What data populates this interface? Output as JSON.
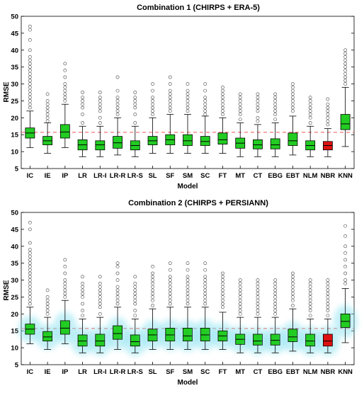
{
  "chart_data": [
    {
      "type": "box",
      "title": "Combination 1 (CHIRPS + ERA-5)",
      "xlabel": "Model",
      "ylabel": "RMSE",
      "ylim": [
        5,
        50
      ],
      "yticks": [
        5,
        10,
        15,
        20,
        25,
        30,
        35,
        40,
        45,
        50
      ],
      "reference_line": 15.7,
      "categories": [
        "IC",
        "IE",
        "IP",
        "LR",
        "LR-I",
        "LR-R",
        "LR-S",
        "SL",
        "SF",
        "SM",
        "SC",
        "FT",
        "MT",
        "CT",
        "EBG",
        "EBT",
        "NLM",
        "NBR",
        "KNN"
      ],
      "box_color": "#22cc22",
      "highlight_color": "#dd1111",
      "highlight_category": "NBR",
      "boxes": [
        {
          "q1": 14.0,
          "median": 15.5,
          "q3": 17.0,
          "wlo": 11.2,
          "whi": 22.0,
          "outliers": [
            23,
            24,
            25,
            26,
            27,
            28,
            29,
            30,
            31,
            32,
            33,
            34,
            35,
            36,
            37,
            38,
            40,
            43,
            46,
            47
          ]
        },
        {
          "q1": 12.0,
          "median": 13.2,
          "q3": 14.5,
          "wlo": 9.5,
          "whi": 18.5,
          "outliers": [
            19,
            20,
            21,
            22,
            23,
            24,
            25,
            27
          ]
        },
        {
          "q1": 14.0,
          "median": 15.8,
          "q3": 18.0,
          "wlo": 11.2,
          "whi": 24.0,
          "outliers": [
            25,
            26,
            27,
            28,
            29,
            30,
            32,
            34,
            36
          ]
        },
        {
          "q1": 10.5,
          "median": 12.0,
          "q3": 13.5,
          "wlo": 8.5,
          "whi": 17.5,
          "outliers": [
            18.5,
            21,
            23,
            24,
            25,
            26,
            27.5
          ]
        },
        {
          "q1": 10.5,
          "median": 12.0,
          "q3": 13.2,
          "wlo": 8.5,
          "whi": 17.5,
          "outliers": [
            18.5,
            20,
            22,
            23,
            24,
            25,
            26,
            27.5
          ]
        },
        {
          "q1": 11.0,
          "median": 12.6,
          "q3": 14.5,
          "wlo": 9.0,
          "whi": 20.0,
          "outliers": [
            21,
            22,
            23,
            24,
            25,
            26,
            28,
            32
          ]
        },
        {
          "q1": 10.5,
          "median": 11.8,
          "q3": 13.2,
          "wlo": 8.5,
          "whi": 17.5,
          "outliers": [
            18.5,
            21,
            23,
            24,
            25,
            26,
            27.5
          ]
        },
        {
          "q1": 12.0,
          "median": 13.2,
          "q3": 14.5,
          "wlo": 9.5,
          "whi": 20.0,
          "outliers": [
            21,
            22,
            23,
            24,
            25,
            26,
            28,
            30
          ]
        },
        {
          "q1": 12.0,
          "median": 13.5,
          "q3": 15.0,
          "wlo": 9.5,
          "whi": 21.0,
          "outliers": [
            22,
            23,
            24,
            25,
            26,
            27,
            28,
            30,
            32
          ]
        },
        {
          "q1": 11.8,
          "median": 13.2,
          "q3": 15.0,
          "wlo": 9.5,
          "whi": 21.0,
          "outliers": [
            22,
            23,
            24,
            25,
            26,
            27,
            28,
            30
          ]
        },
        {
          "q1": 11.8,
          "median": 13.0,
          "q3": 14.5,
          "wlo": 9.5,
          "whi": 20.5,
          "outliers": [
            21,
            22,
            23,
            24,
            25,
            26,
            28,
            30
          ]
        },
        {
          "q1": 12.2,
          "median": 13.5,
          "q3": 15.5,
          "wlo": 9.5,
          "whi": 20.0,
          "outliers": [
            21,
            22,
            23,
            24,
            25,
            26,
            27,
            28,
            29
          ]
        },
        {
          "q1": 11.0,
          "median": 12.5,
          "q3": 14.0,
          "wlo": 8.5,
          "whi": 18.5,
          "outliers": [
            19.5,
            21,
            22,
            23,
            24,
            25,
            26,
            27
          ]
        },
        {
          "q1": 10.8,
          "median": 12.0,
          "q3": 13.5,
          "wlo": 8.5,
          "whi": 18.0,
          "outliers": [
            19,
            20,
            22,
            23,
            24,
            25,
            26,
            27
          ]
        },
        {
          "q1": 10.8,
          "median": 12.0,
          "q3": 13.8,
          "wlo": 8.5,
          "whi": 18.5,
          "outliers": [
            19.5,
            21,
            22,
            23,
            24,
            25,
            26,
            27
          ]
        },
        {
          "q1": 11.8,
          "median": 13.2,
          "q3": 15.5,
          "wlo": 9.0,
          "whi": 20.5,
          "outliers": [
            22,
            23,
            24,
            25,
            26,
            27,
            28,
            29,
            30
          ]
        },
        {
          "q1": 10.5,
          "median": 11.8,
          "q3": 13.2,
          "wlo": 8.5,
          "whi": 17.5,
          "outliers": [
            18.5,
            20,
            21,
            22,
            23,
            24,
            25,
            26
          ]
        },
        {
          "q1": 10.5,
          "median": 11.8,
          "q3": 13.0,
          "wlo": 8.5,
          "whi": 16.8,
          "outliers": [
            18,
            19,
            20,
            21,
            22,
            23,
            24,
            25.5
          ]
        },
        {
          "q1": 16.5,
          "median": 18.2,
          "q3": 21.0,
          "wlo": 11.5,
          "whi": 29.0,
          "outliers": [
            30,
            31,
            32,
            33,
            34,
            35,
            36,
            37,
            38,
            39,
            40
          ]
        }
      ]
    },
    {
      "type": "box",
      "title": "Combination 2 (CHIRPS + PERSIANN)",
      "xlabel": "Model",
      "ylabel": "RMSE",
      "ylim": [
        5,
        50
      ],
      "yticks": [
        5,
        10,
        15,
        20,
        25,
        30,
        35,
        40,
        45,
        50
      ],
      "reference_line": 15.7,
      "categories": [
        "IC",
        "IE",
        "IP",
        "LR",
        "LR-I",
        "LR-R",
        "LR-S",
        "SL",
        "SF",
        "SM",
        "SC",
        "FT",
        "MT",
        "CT",
        "EBG",
        "EBT",
        "NLM",
        "NBR",
        "KNN"
      ],
      "box_color": "#22cc22",
      "highlight_color": "#dd1111",
      "highlight_category": "NBR",
      "boxes": [
        {
          "q1": 14.0,
          "median": 15.5,
          "q3": 17.0,
          "wlo": 11.2,
          "whi": 22.0,
          "outliers": [
            23,
            24,
            25,
            26,
            27,
            28,
            29,
            30,
            31,
            32,
            33,
            34,
            35,
            36,
            37,
            38,
            39,
            41,
            45,
            47
          ]
        },
        {
          "q1": 12.0,
          "median": 13.2,
          "q3": 14.8,
          "wlo": 9.5,
          "whi": 19.0,
          "outliers": [
            20,
            21,
            22,
            23,
            24,
            25,
            27
          ]
        },
        {
          "q1": 14.0,
          "median": 15.8,
          "q3": 18.0,
          "wlo": 11.2,
          "whi": 24.0,
          "outliers": [
            25,
            26,
            27,
            28,
            29,
            30,
            32,
            34,
            36
          ]
        },
        {
          "q1": 10.5,
          "median": 12.0,
          "q3": 13.8,
          "wlo": 8.5,
          "whi": 18.5,
          "outliers": [
            19.5,
            21,
            23,
            25,
            26,
            27,
            28,
            29,
            31
          ]
        },
        {
          "q1": 10.5,
          "median": 12.0,
          "q3": 14.0,
          "wlo": 8.5,
          "whi": 19.0,
          "outliers": [
            20,
            22,
            23,
            24,
            25,
            26,
            27,
            28,
            29,
            31
          ]
        },
        {
          "q1": 12.5,
          "median": 14.2,
          "q3": 16.5,
          "wlo": 9.5,
          "whi": 22.0,
          "outliers": [
            23,
            24,
            25,
            26,
            27,
            28,
            30,
            32,
            34,
            35
          ]
        },
        {
          "q1": 10.5,
          "median": 11.8,
          "q3": 13.8,
          "wlo": 8.5,
          "whi": 18.5,
          "outliers": [
            19.5,
            21,
            23,
            24,
            25,
            26,
            27,
            28,
            29,
            31
          ]
        },
        {
          "q1": 12.0,
          "median": 13.8,
          "q3": 15.5,
          "wlo": 9.5,
          "whi": 21.5,
          "outliers": [
            22.5,
            24,
            25,
            26,
            27,
            28,
            29,
            30,
            31,
            32,
            34
          ]
        },
        {
          "q1": 12.0,
          "median": 13.8,
          "q3": 15.8,
          "wlo": 9.5,
          "whi": 22.0,
          "outliers": [
            23,
            24,
            25,
            26,
            27,
            28,
            29,
            30,
            31,
            33,
            35
          ]
        },
        {
          "q1": 12.0,
          "median": 13.5,
          "q3": 15.8,
          "wlo": 9.5,
          "whi": 22.0,
          "outliers": [
            23,
            24,
            25,
            26,
            27,
            28,
            29,
            30,
            31,
            33,
            35
          ]
        },
        {
          "q1": 12.0,
          "median": 13.8,
          "q3": 15.8,
          "wlo": 9.5,
          "whi": 22.0,
          "outliers": [
            23,
            24,
            25,
            26,
            27,
            28,
            29,
            30,
            31,
            33,
            35
          ]
        },
        {
          "q1": 12.0,
          "median": 13.5,
          "q3": 15.0,
          "wlo": 9.5,
          "whi": 20.5,
          "outliers": [
            22,
            23,
            24,
            25,
            26,
            27,
            28,
            29,
            30,
            31,
            32
          ]
        },
        {
          "q1": 11.0,
          "median": 12.5,
          "q3": 14.0,
          "wlo": 8.5,
          "whi": 19.0,
          "outliers": [
            20,
            21,
            22,
            23,
            24,
            25,
            26,
            27,
            28,
            29,
            30
          ]
        },
        {
          "q1": 10.8,
          "median": 12.0,
          "q3": 14.0,
          "wlo": 8.5,
          "whi": 19.0,
          "outliers": [
            20,
            21,
            22,
            23,
            24,
            25,
            26,
            27,
            28,
            29,
            30
          ]
        },
        {
          "q1": 10.8,
          "median": 12.2,
          "q3": 14.0,
          "wlo": 8.5,
          "whi": 19.0,
          "outliers": [
            20,
            21,
            22,
            23,
            24,
            25,
            26,
            27,
            28,
            29,
            30
          ]
        },
        {
          "q1": 11.8,
          "median": 13.2,
          "q3": 15.5,
          "wlo": 9.0,
          "whi": 21.5,
          "outliers": [
            22.5,
            24,
            25,
            26,
            27,
            28,
            29,
            30,
            31,
            32
          ]
        },
        {
          "q1": 10.5,
          "median": 12.0,
          "q3": 14.0,
          "wlo": 8.5,
          "whi": 18.5,
          "outliers": [
            19.5,
            21,
            22,
            23,
            24,
            25,
            26,
            27,
            28,
            29,
            30
          ]
        },
        {
          "q1": 10.5,
          "median": 12.0,
          "q3": 14.0,
          "wlo": 8.5,
          "whi": 18.5,
          "outliers": [
            19.5,
            21,
            22,
            23,
            24,
            25,
            26,
            27,
            28,
            29,
            30
          ]
        },
        {
          "q1": 16.0,
          "median": 17.8,
          "q3": 20.0,
          "wlo": 11.5,
          "whi": 27.5,
          "outliers": [
            29,
            30,
            32,
            34,
            36,
            38,
            40,
            43,
            46
          ]
        }
      ]
    }
  ]
}
